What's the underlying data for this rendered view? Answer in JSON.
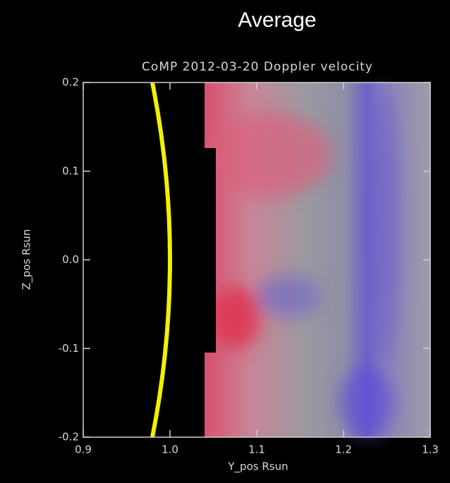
{
  "heading": "Average",
  "chart_data": {
    "type": "image",
    "title": "CoMP 2012-03-20 Doppler velocity",
    "x_label": "Y_pos Rsun",
    "y_label": "Z_pos Rsun",
    "xlim": [
      0.9,
      1.3
    ],
    "xticks": [
      0.9,
      {
        "value": 1,
        "label": "1.0"
      },
      1.1,
      1.2,
      1.3
    ],
    "ylim": [
      -0.2,
      0.2
    ],
    "yticks": [
      -0.2,
      -0.1,
      {
        "value": 0,
        "label": "0.0"
      },
      0.1,
      0.2
    ]
  }
}
